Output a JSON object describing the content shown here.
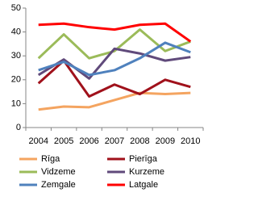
{
  "chart_data": {
    "type": "line",
    "categories": [
      "2004",
      "2005",
      "2006",
      "2007",
      "2008",
      "2009",
      "2010"
    ],
    "ylim": [
      0,
      50
    ],
    "yticks": [
      0,
      10,
      20,
      30,
      40,
      50
    ],
    "grid": false,
    "legend": "bottom",
    "series": [
      {
        "name": "Rīga",
        "color": "#f4a460",
        "values": [
          7.5,
          8.8,
          8.5,
          11.5,
          14.5,
          14,
          14.5
        ]
      },
      {
        "name": "Pierīga",
        "color": "#a0111b",
        "values": [
          18.5,
          28,
          13,
          18,
          14,
          20,
          17
        ]
      },
      {
        "name": "Vidzeme",
        "color": "#9bbb59",
        "values": [
          29,
          39,
          29,
          32,
          41,
          32,
          36
        ]
      },
      {
        "name": "Kurzeme",
        "color": "#604a7b",
        "values": [
          22,
          28.5,
          20.5,
          33,
          31,
          28,
          29.5
        ]
      },
      {
        "name": "Zemgale",
        "color": "#4f81bd",
        "values": [
          24,
          27.5,
          22,
          24,
          29,
          35.5,
          31.5
        ]
      },
      {
        "name": "Latgale",
        "color": "#ff0000",
        "values": [
          43,
          43.5,
          42,
          41,
          43,
          43.5,
          36
        ]
      }
    ]
  }
}
